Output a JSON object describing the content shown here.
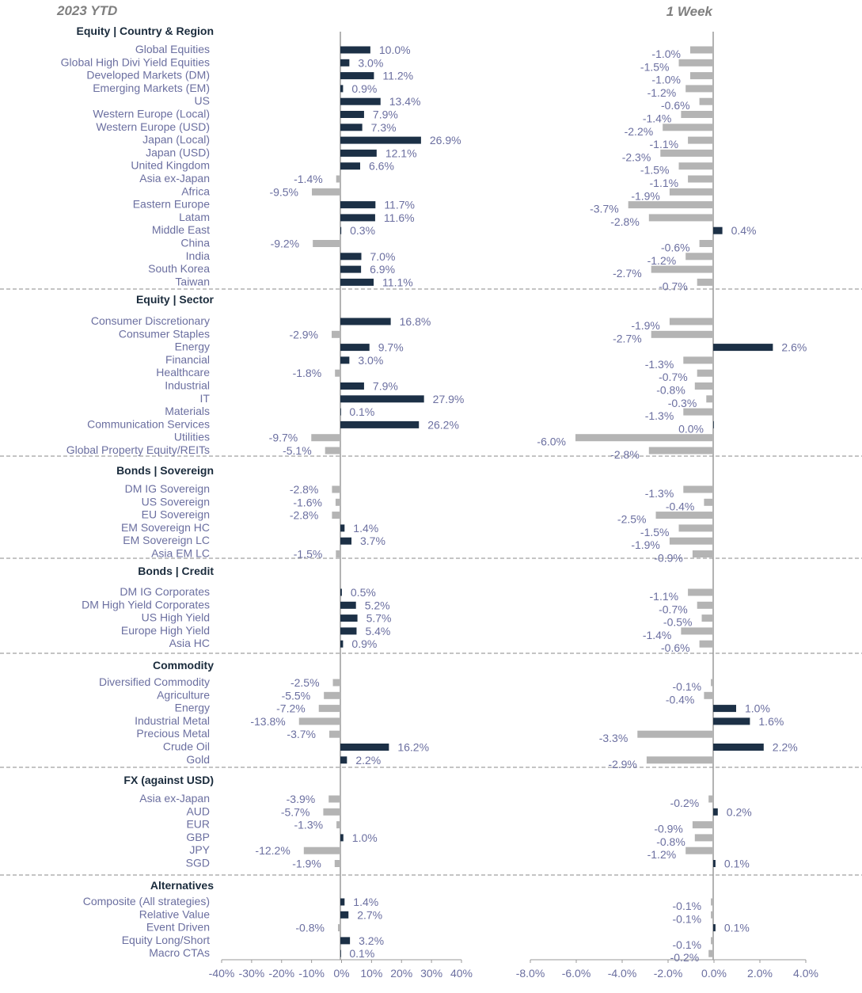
{
  "chart_data": {
    "type": "bar",
    "orientation": "horizontal",
    "panels": [
      {
        "key": "ytd",
        "title": "2023 YTD",
        "xlim": [
          -40,
          40
        ],
        "ticks": [
          "-40%",
          "-30%",
          "-20%",
          "-10%",
          "0%",
          "10%",
          "20%",
          "30%",
          "40%"
        ]
      },
      {
        "key": "week",
        "title": "1 Week",
        "xlim": [
          -8,
          4
        ],
        "ticks": [
          "-8.0%",
          "-6.0%",
          "-4.0%",
          "-2.0%",
          "0.0%",
          "2.0%",
          "4.0%"
        ]
      }
    ],
    "colors": {
      "positive": "#1c3046",
      "negative": "#b4b4b4",
      "divider": "#a0a0a0",
      "axis": "#9a9a9a"
    },
    "groups": [
      {
        "title": "Equity | Country & Region",
        "items": [
          {
            "label": "Global Equities",
            "ytd": 10.0,
            "ytd_label": "10.0%",
            "week": -1.0,
            "week_label": "-1.0%"
          },
          {
            "label": "Global High Divi Yield Equities",
            "ytd": 3.0,
            "ytd_label": "3.0%",
            "week": -1.5,
            "week_label": "-1.5%"
          },
          {
            "label": "Developed Markets (DM)",
            "ytd": 11.2,
            "ytd_label": "11.2%",
            "week": -1.0,
            "week_label": "-1.0%"
          },
          {
            "label": "Emerging Markets (EM)",
            "ytd": 0.9,
            "ytd_label": "0.9%",
            "week": -1.2,
            "week_label": "-1.2%"
          },
          {
            "label": "US",
            "ytd": 13.4,
            "ytd_label": "13.4%",
            "week": -0.6,
            "week_label": "-0.6%"
          },
          {
            "label": "Western Europe (Local)",
            "ytd": 7.9,
            "ytd_label": "7.9%",
            "week": -1.4,
            "week_label": "-1.4%"
          },
          {
            "label": "Western Europe (USD)",
            "ytd": 7.3,
            "ytd_label": "7.3%",
            "week": -2.2,
            "week_label": "-2.2%"
          },
          {
            "label": "Japan (Local)",
            "ytd": 26.9,
            "ytd_label": "26.9%",
            "week": -1.1,
            "week_label": "-1.1%"
          },
          {
            "label": "Japan (USD)",
            "ytd": 12.1,
            "ytd_label": "12.1%",
            "week": -2.3,
            "week_label": "-2.3%"
          },
          {
            "label": "United Kingdom",
            "ytd": 6.6,
            "ytd_label": "6.6%",
            "week": -1.5,
            "week_label": "-1.5%"
          },
          {
            "label": "Asia ex-Japan",
            "ytd": -1.4,
            "ytd_label": "-1.4%",
            "week": -1.1,
            "week_label": "-1.1%"
          },
          {
            "label": "Africa",
            "ytd": -9.5,
            "ytd_label": "-9.5%",
            "week": -1.9,
            "week_label": "-1.9%"
          },
          {
            "label": "Eastern Europe",
            "ytd": 11.7,
            "ytd_label": "11.7%",
            "week": -3.7,
            "week_label": "-3.7%"
          },
          {
            "label": "Latam",
            "ytd": 11.6,
            "ytd_label": "11.6%",
            "week": -2.8,
            "week_label": "-2.8%"
          },
          {
            "label": "Middle East",
            "ytd": 0.3,
            "ytd_label": "0.3%",
            "week": 0.4,
            "week_label": "0.4%"
          },
          {
            "label": "China",
            "ytd": -9.2,
            "ytd_label": "-9.2%",
            "week": -0.6,
            "week_label": "-0.6%"
          },
          {
            "label": "India",
            "ytd": 7.0,
            "ytd_label": "7.0%",
            "week": -1.2,
            "week_label": "-1.2%"
          },
          {
            "label": "South Korea",
            "ytd": 6.9,
            "ytd_label": "6.9%",
            "week": -2.7,
            "week_label": "-2.7%"
          },
          {
            "label": "Taiwan",
            "ytd": 11.1,
            "ytd_label": "11.1%",
            "week": -0.7,
            "week_label": "-0.7%"
          }
        ]
      },
      {
        "title": "Equity | Sector",
        "items": [
          {
            "label": "Consumer Discretionary",
            "ytd": 16.8,
            "ytd_label": "16.8%",
            "week": -1.9,
            "week_label": "-1.9%"
          },
          {
            "label": "Consumer Staples",
            "ytd": -2.9,
            "ytd_label": "-2.9%",
            "week": -2.7,
            "week_label": "-2.7%"
          },
          {
            "label": "Energy",
            "ytd": 9.7,
            "ytd_label": "9.7%",
            "week": 2.6,
            "week_label": "2.6%"
          },
          {
            "label": "Financial",
            "ytd": 3.0,
            "ytd_label": "3.0%",
            "week": -1.3,
            "week_label": "-1.3%"
          },
          {
            "label": "Healthcare",
            "ytd": -1.8,
            "ytd_label": "-1.8%",
            "week": -0.7,
            "week_label": "-0.7%"
          },
          {
            "label": "Industrial",
            "ytd": 7.9,
            "ytd_label": "7.9%",
            "week": -0.8,
            "week_label": "-0.8%"
          },
          {
            "label": "IT",
            "ytd": 27.9,
            "ytd_label": "27.9%",
            "week": -0.3,
            "week_label": "-0.3%"
          },
          {
            "label": "Materials",
            "ytd": 0.1,
            "ytd_label": "0.1%",
            "week": -1.3,
            "week_label": "-1.3%"
          },
          {
            "label": "Communication Services",
            "ytd": 26.2,
            "ytd_label": "26.2%",
            "week": 0.0,
            "week_label": "0.0%"
          },
          {
            "label": "Utilities",
            "ytd": -9.7,
            "ytd_label": "-9.7%",
            "week": -6.0,
            "week_label": "-6.0%"
          },
          {
            "label": "Global Property Equity/REITs",
            "ytd": -5.1,
            "ytd_label": "-5.1%",
            "week": -2.8,
            "week_label": "-2.8%"
          }
        ]
      },
      {
        "title": "Bonds | Sovereign",
        "items": [
          {
            "label": "DM IG Sovereign",
            "ytd": -2.8,
            "ytd_label": "-2.8%",
            "week": -1.3,
            "week_label": "-1.3%"
          },
          {
            "label": "US Sovereign",
            "ytd": -1.6,
            "ytd_label": "-1.6%",
            "week": -0.4,
            "week_label": "-0.4%"
          },
          {
            "label": "EU Sovereign",
            "ytd": -2.8,
            "ytd_label": "-2.8%",
            "week": -2.5,
            "week_label": "-2.5%"
          },
          {
            "label": "EM Sovereign HC",
            "ytd": 1.4,
            "ytd_label": "1.4%",
            "week": -1.5,
            "week_label": "-1.5%"
          },
          {
            "label": "EM Sovereign LC",
            "ytd": 3.7,
            "ytd_label": "3.7%",
            "week": -1.9,
            "week_label": "-1.9%"
          },
          {
            "label": "Asia EM LC",
            "ytd": -1.5,
            "ytd_label": "-1.5%",
            "week": -0.9,
            "week_label": "-0.9%"
          }
        ]
      },
      {
        "title": "Bonds | Credit",
        "items": [
          {
            "label": "DM IG Corporates",
            "ytd": 0.5,
            "ytd_label": "0.5%",
            "week": -1.1,
            "week_label": "-1.1%"
          },
          {
            "label": "DM High Yield Corporates",
            "ytd": 5.2,
            "ytd_label": "5.2%",
            "week": -0.7,
            "week_label": "-0.7%"
          },
          {
            "label": "US High Yield",
            "ytd": 5.7,
            "ytd_label": "5.7%",
            "week": -0.5,
            "week_label": "-0.5%"
          },
          {
            "label": "Europe High Yield",
            "ytd": 5.4,
            "ytd_label": "5.4%",
            "week": -1.4,
            "week_label": "-1.4%"
          },
          {
            "label": "Asia HC",
            "ytd": 0.9,
            "ytd_label": "0.9%",
            "week": -0.6,
            "week_label": "-0.6%"
          }
        ]
      },
      {
        "title": "Commodity",
        "items": [
          {
            "label": "Diversified Commodity",
            "ytd": -2.5,
            "ytd_label": "-2.5%",
            "week": -0.1,
            "week_label": "-0.1%"
          },
          {
            "label": "Agriculture",
            "ytd": -5.5,
            "ytd_label": "-5.5%",
            "week": -0.4,
            "week_label": "-0.4%"
          },
          {
            "label": "Energy",
            "ytd": -7.2,
            "ytd_label": "-7.2%",
            "week": 1.0,
            "week_label": "1.0%"
          },
          {
            "label": "Industrial Metal",
            "ytd": -13.8,
            "ytd_label": "-13.8%",
            "week": 1.6,
            "week_label": "1.6%"
          },
          {
            "label": "Precious Metal",
            "ytd": -3.7,
            "ytd_label": "-3.7%",
            "week": -3.3,
            "week_label": "-3.3%"
          },
          {
            "label": "Crude Oil",
            "ytd": 16.2,
            "ytd_label": "16.2%",
            "week": 2.2,
            "week_label": "2.2%"
          },
          {
            "label": "Gold",
            "ytd": 2.2,
            "ytd_label": "2.2%",
            "week": -2.9,
            "week_label": "-2.9%"
          }
        ]
      },
      {
        "title": "FX (against USD)",
        "items": [
          {
            "label": "Asia ex-Japan",
            "ytd": -3.9,
            "ytd_label": "-3.9%",
            "week": -0.2,
            "week_label": "-0.2%"
          },
          {
            "label": "AUD",
            "ytd": -5.7,
            "ytd_label": "-5.7%",
            "week": 0.2,
            "week_label": "0.2%"
          },
          {
            "label": "EUR",
            "ytd": -1.3,
            "ytd_label": "-1.3%",
            "week": -0.9,
            "week_label": "-0.9%"
          },
          {
            "label": "GBP",
            "ytd": 1.0,
            "ytd_label": "1.0%",
            "week": -0.8,
            "week_label": "-0.8%"
          },
          {
            "label": "JPY",
            "ytd": -12.2,
            "ytd_label": "-12.2%",
            "week": -1.2,
            "week_label": "-1.2%"
          },
          {
            "label": "SGD",
            "ytd": -1.9,
            "ytd_label": "-1.9%",
            "week": 0.1,
            "week_label": "0.1%"
          }
        ]
      },
      {
        "title": "Alternatives",
        "items": [
          {
            "label": "Composite (All strategies)",
            "ytd": 1.4,
            "ytd_label": "1.4%",
            "week": -0.1,
            "week_label": "-0.1%"
          },
          {
            "label": "Relative Value",
            "ytd": 2.7,
            "ytd_label": "2.7%",
            "week": -0.1,
            "week_label": "-0.1%"
          },
          {
            "label": "Event Driven",
            "ytd": -0.8,
            "ytd_label": "-0.8%",
            "week": 0.1,
            "week_label": "0.1%"
          },
          {
            "label": "Equity Long/Short",
            "ytd": 3.2,
            "ytd_label": "3.2%",
            "week": -0.1,
            "week_label": "-0.1%"
          },
          {
            "label": "Macro CTAs",
            "ytd": 0.1,
            "ytd_label": "0.1%",
            "week": -0.2,
            "week_label": "-0.2%"
          }
        ]
      }
    ]
  }
}
